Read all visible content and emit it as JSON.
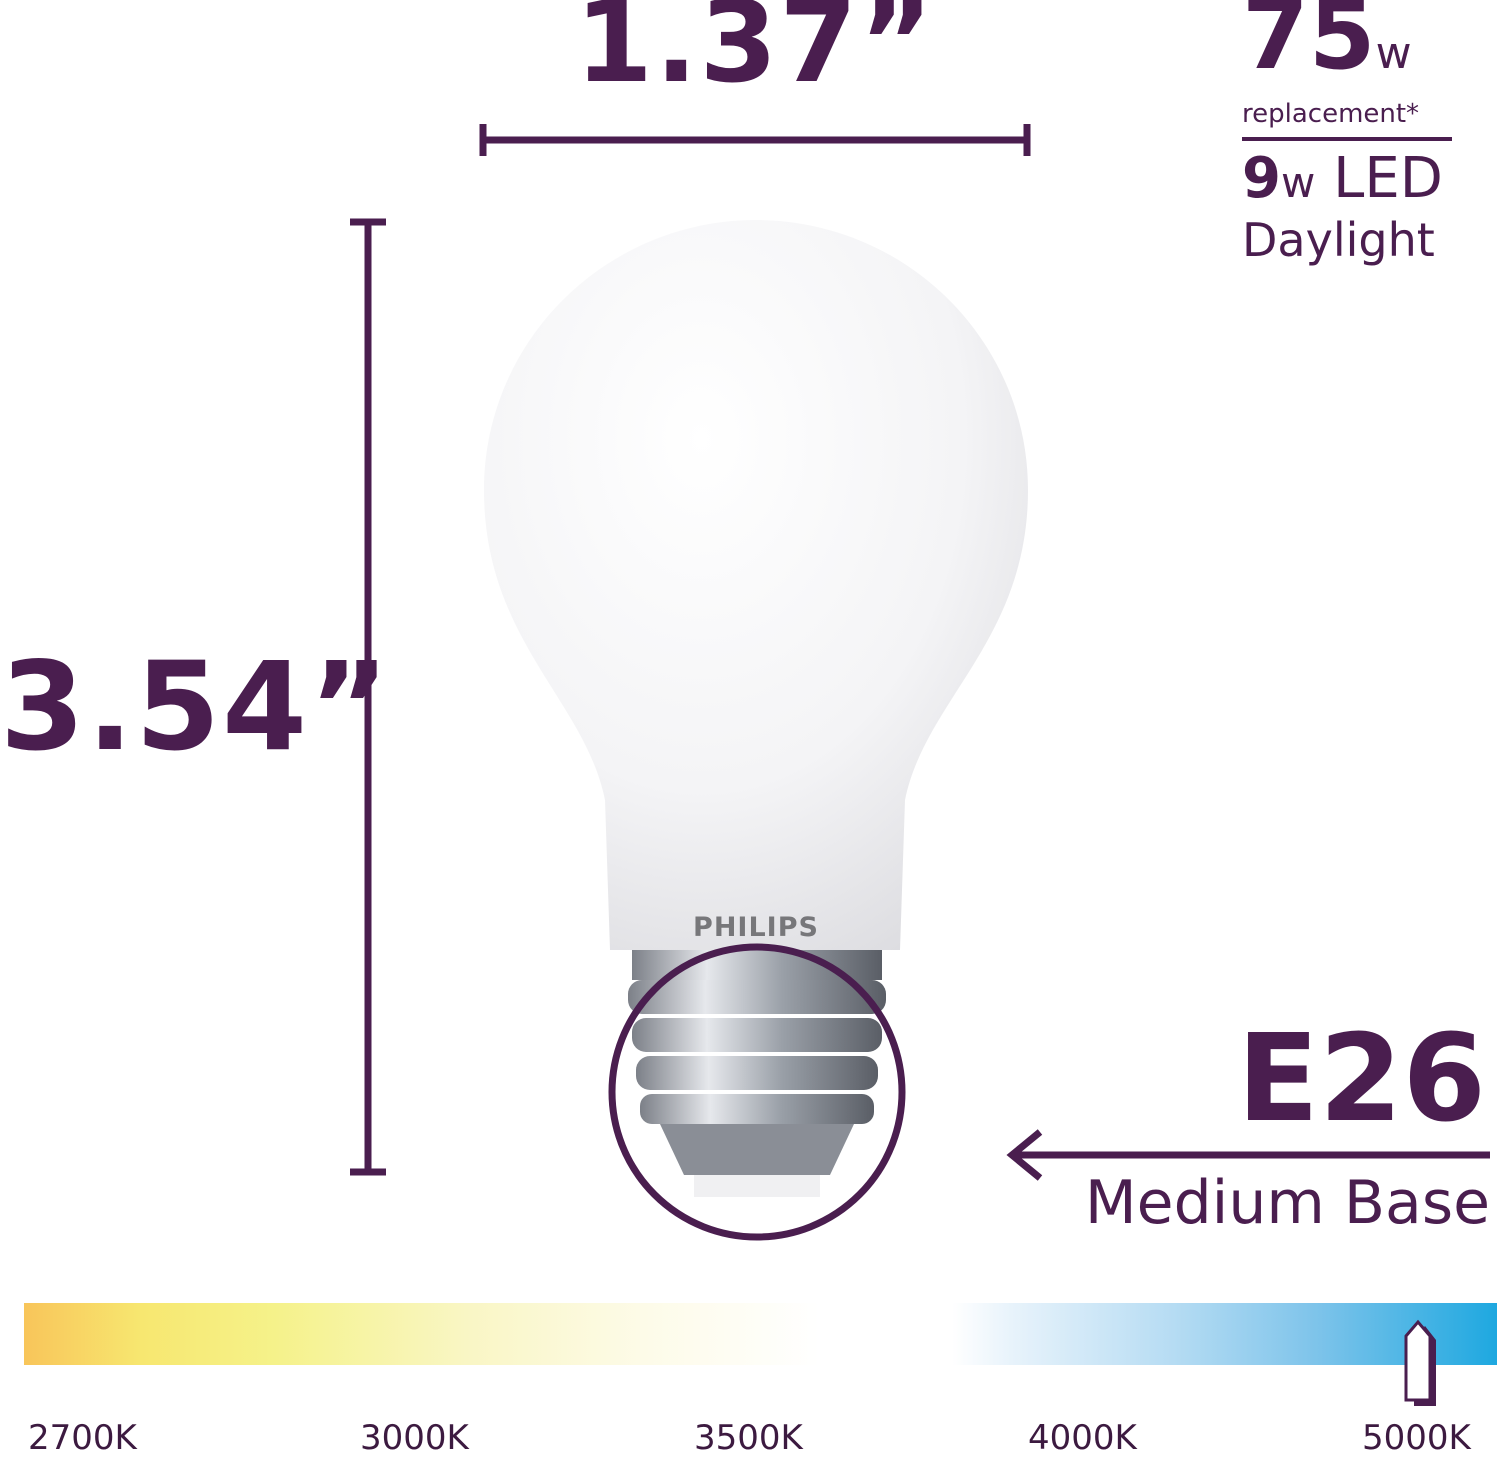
{
  "dimensions": {
    "width": "1.37”",
    "height": "3.54”"
  },
  "wattage": {
    "replacement_value": "75",
    "replacement_unit": "w",
    "replacement_label": "replacement*",
    "led_value": "9",
    "led_unit": "w",
    "led_label": "LED",
    "color_name": "Daylight"
  },
  "product": {
    "brand": "PHILIPS"
  },
  "base": {
    "type": "E26",
    "name": "Medium Base"
  },
  "color_temperature": {
    "labels": [
      "2700K",
      "3000K",
      "3500K",
      "4000K",
      "5000K"
    ],
    "selected": "5000K"
  },
  "colors": {
    "brand_purple": "#4a1e4f",
    "warm": "#f8c55a",
    "cool": "#1ea8e0"
  }
}
